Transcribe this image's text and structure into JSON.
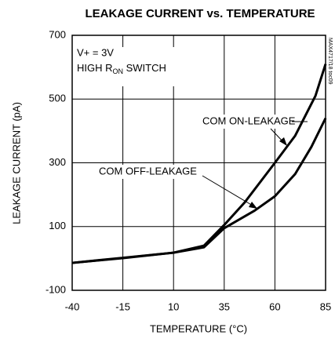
{
  "chart_data": {
    "type": "line",
    "title": "LEAKAGE CURRENT vs. TEMPERATURE",
    "xlabel": "TEMPERATURE (°C)",
    "ylabel": "LEAKAGE CURRENT (pA)",
    "annotations": {
      "supply": "V+ = 3V",
      "switch": {
        "before": "HIGH R",
        "sub": "ON",
        "after": " SWITCH"
      },
      "code": "MAX4717/18 toc09"
    },
    "xlim": [
      -40,
      85
    ],
    "xticks": [
      -40,
      -15,
      10,
      35,
      60,
      85
    ],
    "ylim": [
      -100,
      700
    ],
    "yticks": [
      -100,
      100,
      300,
      500,
      700
    ],
    "grid": true,
    "series": [
      {
        "name": "COM ON-LEAKAGE",
        "color": "#000000",
        "x": [
          -40,
          -15,
          10,
          25,
          35,
          45,
          60,
          70,
          80,
          85
        ],
        "values": [
          -14,
          1,
          18,
          40,
          105,
          175,
          300,
          385,
          510,
          610
        ]
      },
      {
        "name": "COM OFF-LEAKAGE",
        "color": "#000000",
        "x": [
          -40,
          -15,
          10,
          25,
          35,
          50,
          60,
          70,
          78,
          85
        ],
        "values": [
          -14,
          2,
          18,
          35,
          95,
          150,
          195,
          265,
          350,
          440
        ]
      }
    ]
  }
}
